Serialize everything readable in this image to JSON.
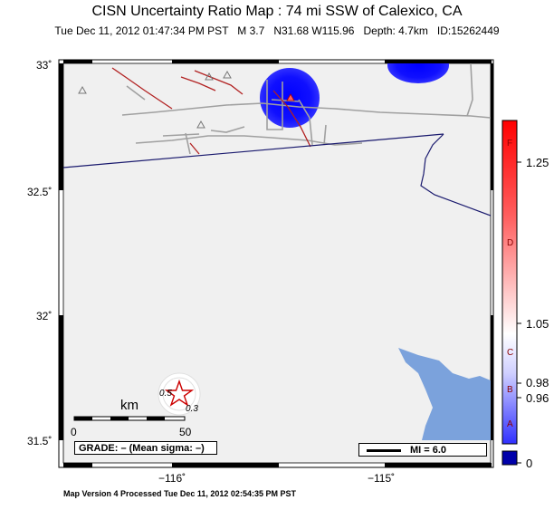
{
  "header": {
    "title": "CISN Uncertainty Ratio Map : 74 mi SSW of Calexico, CA",
    "subtitle": "Tue Dec 11, 2012 01:47:34 PM PST   M 3.7   N31.68 W115.96   Depth: 4.7km   ID:15262449"
  },
  "axes": {
    "lat_labels": [
      "33˚",
      "32.5˚",
      "32˚",
      "31.5˚"
    ],
    "lon_labels": [
      "−116˚",
      "−115˚"
    ]
  },
  "colorbar": {
    "tick_labels": [
      "1.25",
      "1.05",
      "0.98",
      "0.96",
      "0"
    ],
    "grade_labels": [
      "F",
      "D",
      "C",
      "B",
      "A"
    ],
    "colors": {
      "high": "#ff0000",
      "mid": "#ffffff",
      "low": "#0000ff",
      "bottom": "#0000aa"
    }
  },
  "map": {
    "contour_labels": [
      "0.5",
      "0.3"
    ],
    "scale_label": "km",
    "scale_ticks": [
      "0",
      "50"
    ],
    "grade_text": "GRADE: – (Mean sigma: –)",
    "mi_text": "MI = 6.0",
    "colors": {
      "land": "#f0f0f0",
      "water": "#7ba2dc",
      "fault": "#b22222",
      "road": "#a0a0a0",
      "border": "#1a1a6e",
      "uncertainty": "#0000ff"
    }
  },
  "footer": {
    "text": "Map Version 4 Processed Tue Dec 11, 2012 02:54:35 PM PST"
  }
}
